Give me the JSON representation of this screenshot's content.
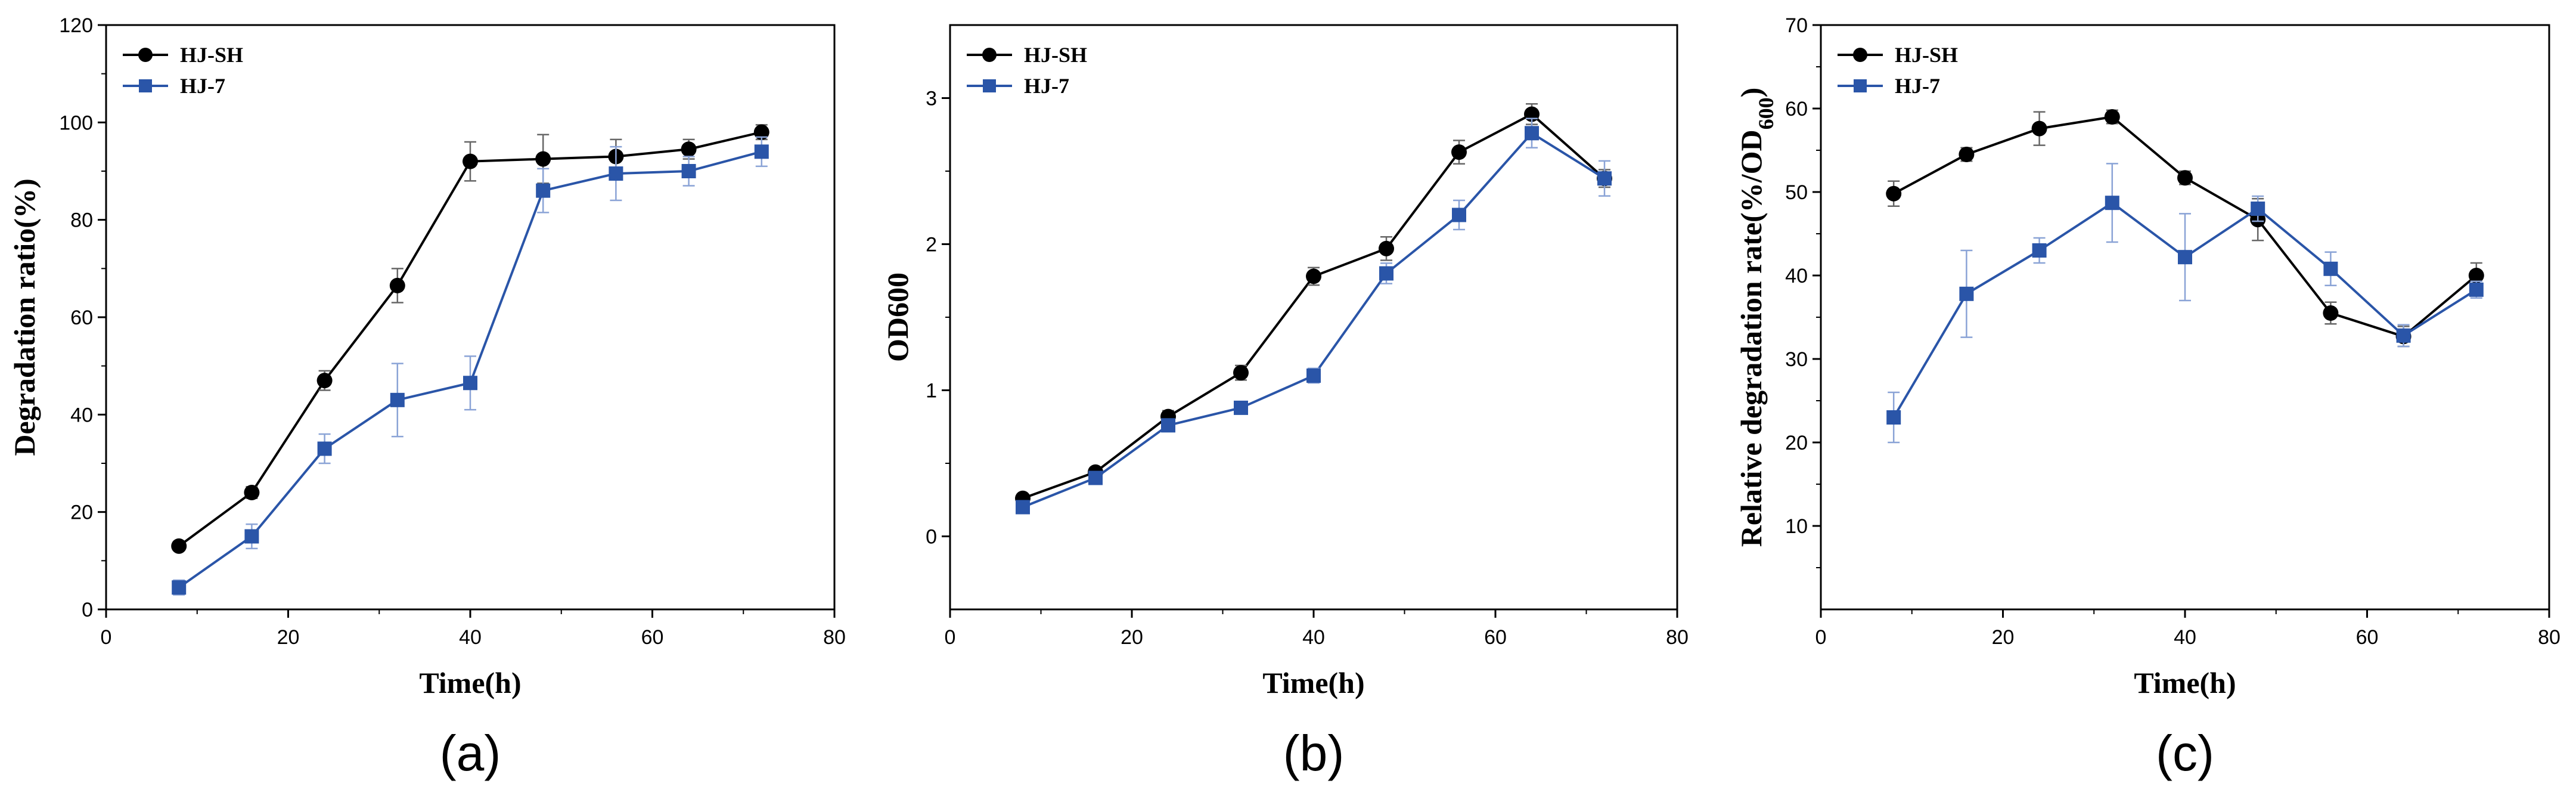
{
  "chart_data": [
    {
      "type": "line",
      "panel_label": "(a)",
      "xlabel": "Time(h)",
      "ylabel": "Degradation ratio(%)",
      "xlim": [
        0,
        80
      ],
      "ylim": [
        0,
        120
      ],
      "x_ticks": [
        0,
        20,
        40,
        60,
        80
      ],
      "y_ticks": [
        0,
        20,
        40,
        60,
        80,
        100,
        120
      ],
      "legend_position": "top-left",
      "x": [
        8,
        16,
        24,
        32,
        40,
        48,
        56,
        64,
        72
      ],
      "series": [
        {
          "name": "HJ-SH",
          "color": "#000000",
          "marker": "circle",
          "values": [
            13,
            24,
            47,
            66.5,
            92,
            92.5,
            93,
            94.5,
            98
          ],
          "errors": [
            0.8,
            1.2,
            2,
            3.5,
            4,
            5,
            3.5,
            2,
            1.5
          ]
        },
        {
          "name": "HJ-7",
          "color": "#2a55a8",
          "marker": "square",
          "values": [
            4.5,
            15,
            33,
            43,
            46.5,
            86,
            89.5,
            90,
            94
          ],
          "errors": [
            1.5,
            2.5,
            3,
            7.5,
            5.5,
            4.5,
            5.5,
            3,
            3
          ]
        }
      ]
    },
    {
      "type": "line",
      "panel_label": "(b)",
      "xlabel": "Time(h)",
      "ylabel": "OD600",
      "xlim": [
        0,
        80
      ],
      "ylim": [
        -0.5,
        3.5
      ],
      "x_ticks": [
        0,
        20,
        40,
        60,
        80
      ],
      "y_ticks": [
        0,
        1,
        2,
        3
      ],
      "legend_position": "top-left",
      "x": [
        8,
        16,
        24,
        32,
        40,
        48,
        56,
        64,
        72
      ],
      "series": [
        {
          "name": "HJ-SH",
          "color": "#000000",
          "marker": "circle",
          "values": [
            0.26,
            0.44,
            0.82,
            1.12,
            1.78,
            1.97,
            2.63,
            2.89,
            2.45
          ],
          "errors": [
            0.02,
            0.03,
            0.04,
            0.05,
            0.06,
            0.08,
            0.08,
            0.07,
            0.06
          ]
        },
        {
          "name": "HJ-7",
          "color": "#2a55a8",
          "marker": "square",
          "values": [
            0.2,
            0.4,
            0.76,
            0.88,
            1.1,
            1.8,
            2.2,
            2.76,
            2.45
          ],
          "errors": [
            0.02,
            0.03,
            0.04,
            0.04,
            0.05,
            0.07,
            0.1,
            0.1,
            0.12
          ]
        }
      ]
    },
    {
      "type": "line",
      "panel_label": "(c)",
      "xlabel": "Time(h)",
      "ylabel_main": "Relative degradation rate(%/OD",
      "ylabel_sub": "600",
      "ylabel_tail": ")",
      "xlim": [
        0,
        80
      ],
      "ylim": [
        0,
        70
      ],
      "x_ticks": [
        0,
        20,
        40,
        60,
        80
      ],
      "y_ticks": [
        10,
        20,
        30,
        40,
        50,
        60,
        70
      ],
      "legend_position": "top-left",
      "x": [
        8,
        16,
        24,
        32,
        40,
        48,
        56,
        64,
        72
      ],
      "series": [
        {
          "name": "HJ-SH",
          "color": "#000000",
          "marker": "circle",
          "values": [
            49.8,
            54.5,
            57.6,
            59,
            51.7,
            46.7,
            35.5,
            32.7,
            40
          ],
          "errors": [
            1.5,
            0.8,
            2,
            0.8,
            0.8,
            2.5,
            1.3,
            1.2,
            1.5
          ]
        },
        {
          "name": "HJ-7",
          "color": "#2a55a8",
          "marker": "square",
          "values": [
            23,
            37.8,
            43,
            48.7,
            42.2,
            48,
            40.8,
            32.8,
            38.3
          ],
          "errors": [
            3,
            5.2,
            1.5,
            4.7,
            5.2,
            1.5,
            2,
            1.3,
            1
          ]
        }
      ]
    }
  ]
}
